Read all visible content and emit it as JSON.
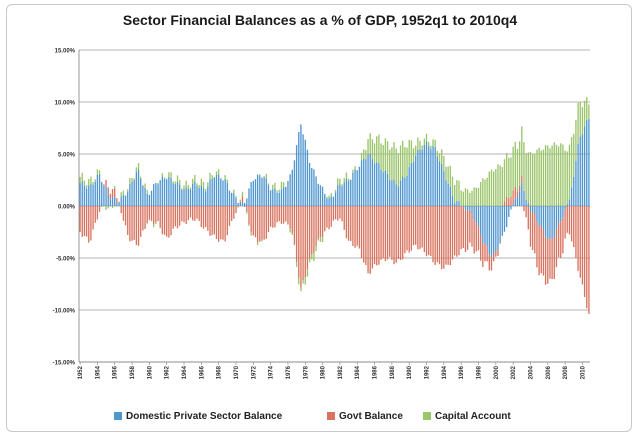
{
  "chart_data": {
    "type": "bar",
    "stacked": true,
    "title": "Sector Financial Balances as a % of GDP, 1952q1 to 2010q4",
    "y_ticks": [
      "15.00%",
      "10.00%",
      "5.00%",
      "0.00%",
      "-5.00%",
      "-10.00%",
      "-15.00%"
    ],
    "ylim": [
      -15,
      15
    ],
    "y_tick_values": [
      15,
      10,
      5,
      0,
      -5,
      -10,
      -15
    ],
    "x_ticks": [
      "1952",
      "1954",
      "1956",
      "1958",
      "1960",
      "1962",
      "1964",
      "1966",
      "1968",
      "1970",
      "1972",
      "1974",
      "1976",
      "1978",
      "1980",
      "1982",
      "1984",
      "1986",
      "1988",
      "1990",
      "1992",
      "1994",
      "1996",
      "1998",
      "2000",
      "2002",
      "2004",
      "2006",
      "2008",
      "2010"
    ],
    "x_start_year": 1952,
    "x_end_year": 2010,
    "quarters_per_year": 4,
    "grid": true,
    "legend_position": "bottom",
    "colors": {
      "private": "#4f96d0",
      "govt": "#d8735f",
      "capital": "#9bc46b"
    },
    "series": [
      {
        "name": "Domestic Private Sector Balance",
        "color": "#4f96d0",
        "annual_values": [
          2.2,
          1.8,
          3.0,
          1.0,
          0.4,
          1.5,
          3.5,
          1.0,
          2.3,
          2.8,
          2.2,
          1.5,
          2.2,
          1.5,
          3.0,
          2.6,
          1.0,
          0.0,
          2.6,
          3.0,
          1.5,
          1.4,
          3.0,
          8.0,
          4.0,
          2.0,
          0.5,
          2.0,
          2.5,
          3.8,
          5.0,
          4.0,
          3.0,
          2.0,
          3.0,
          5.0,
          6.0,
          5.5,
          3.0,
          0.5,
          0.0,
          -1.0,
          -3.5,
          -5.0,
          -3.0,
          -0.2,
          2.0,
          -0.5,
          -2.0,
          -3.5,
          -1.5,
          0.5,
          6.5,
          8.5
        ]
      },
      {
        "name": "Govt Balance",
        "color": "#d8735f",
        "annual_values": [
          -2.5,
          -3.5,
          -0.5,
          0.8,
          0.5,
          -3.0,
          -3.8,
          -1.5,
          -1.5,
          -3.2,
          -2.0,
          -1.5,
          -1.2,
          -2.2,
          -3.0,
          -3.5,
          -1.0,
          0.5,
          -3.0,
          -3.5,
          -2.0,
          -1.5,
          -2.0,
          -8.0,
          -5.0,
          -3.0,
          -2.0,
          -1.0,
          -3.5,
          -4.0,
          -6.5,
          -5.5,
          -5.0,
          -5.5,
          -4.5,
          -3.8,
          -4.5,
          -5.5,
          -6.0,
          -5.0,
          -4.0,
          -3.0,
          -2.0,
          -1.0,
          0.2,
          1.2,
          0.5,
          -3.5,
          -4.8,
          -4.0,
          -3.5,
          -2.5,
          -6.5,
          -10.5
        ]
      },
      {
        "name": "Capital Account",
        "color": "#9bc46b",
        "annual_values": [
          0.6,
          0.5,
          0.3,
          -0.3,
          0.2,
          0.3,
          0.4,
          0.2,
          -0.2,
          0.3,
          0.4,
          0.4,
          0.4,
          0.5,
          0.3,
          0.2,
          0.1,
          0.2,
          -0.2,
          0.1,
          0.3,
          0.5,
          -0.2,
          -0.5,
          -0.6,
          -0.4,
          0.1,
          0.5,
          0.3,
          0.0,
          1.5,
          2.5,
          3.0,
          3.5,
          3.0,
          1.0,
          0.5,
          0.5,
          1.5,
          2.0,
          1.5,
          1.5,
          2.5,
          3.5,
          4.0,
          4.0,
          4.5,
          5.0,
          5.5,
          5.8,
          6.0,
          5.0,
          3.5,
          1.5
        ]
      }
    ]
  }
}
